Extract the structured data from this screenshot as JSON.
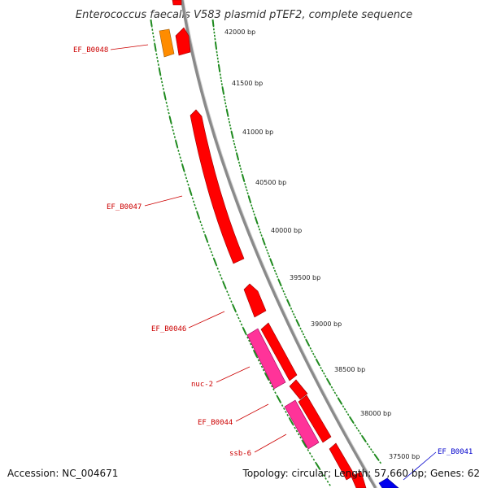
{
  "title": "Enterococcus faecalis V583 plasmid pTEF2, complete sequence",
  "accession": "Accession: NC_004671",
  "summary": "Topology: circular; Length: 57,660 bp; Genes: 62",
  "colors": {
    "backbone": "#8a8a8a",
    "forward_gene": "#ff0000",
    "special_gene": "#ff3399",
    "orange_gene": "#ff8c00",
    "blue_gene": "#0000ee",
    "tick_outer": "#1e8a1e",
    "tick_inner": "#1e8a1e",
    "label_red": "#cc0000",
    "label_blue": "#0000cc"
  },
  "ticks": [
    {
      "label": "42000 bp"
    },
    {
      "label": "41500 bp"
    },
    {
      "label": "41000 bp"
    },
    {
      "label": "40500 bp"
    },
    {
      "label": "40000 bp"
    },
    {
      "label": "39500 bp"
    },
    {
      "label": "39000 bp"
    },
    {
      "label": "38500 bp"
    },
    {
      "label": "38000 bp"
    },
    {
      "label": "37500 bp"
    }
  ],
  "gene_labels": [
    {
      "text": "EF_B0048",
      "color": "red"
    },
    {
      "text": "EF_B0047",
      "color": "red"
    },
    {
      "text": "EF_B0046",
      "color": "red"
    },
    {
      "text": "nuc-2",
      "color": "red"
    },
    {
      "text": "EF_B0044",
      "color": "red"
    },
    {
      "text": "ssb-6",
      "color": "red"
    },
    {
      "text": "EF_B0041",
      "color": "blue"
    }
  ]
}
